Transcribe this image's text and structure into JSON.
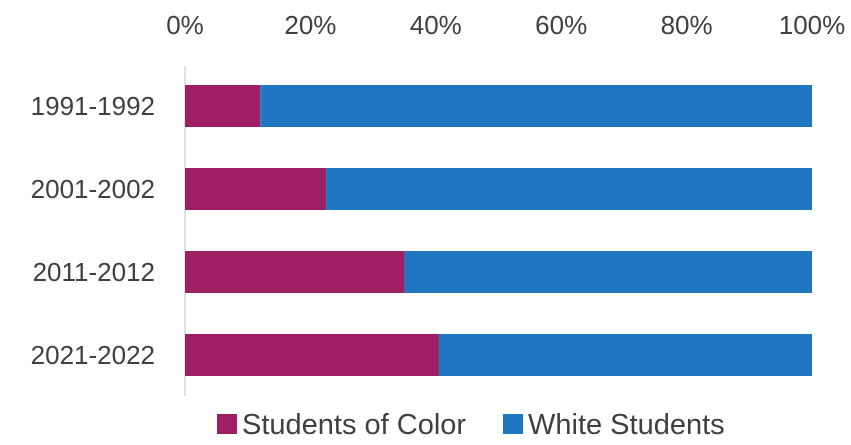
{
  "chart_data": {
    "type": "bar",
    "orientation": "horizontal",
    "stacked": true,
    "percent_stacked": true,
    "categories": [
      "1991-1992",
      "2001-2002",
      "2011-2012",
      "2021-2022"
    ],
    "series": [
      {
        "name": "Students of Color",
        "values": [
          12,
          22.5,
          35,
          40.5
        ],
        "color": "#9E1F63"
      },
      {
        "name": "White Students",
        "values": [
          88,
          77.5,
          65,
          59.5
        ],
        "color": "#1F77C2"
      }
    ],
    "x_ticks": [
      "0%",
      "20%",
      "40%",
      "60%",
      "80%",
      "100%"
    ],
    "x_tick_values": [
      0,
      20,
      40,
      60,
      80,
      100
    ],
    "xlim": [
      0,
      100
    ],
    "x_axis_position": "top",
    "grid": false,
    "legend_position": "bottom",
    "title": "",
    "xlabel": "",
    "ylabel": ""
  }
}
